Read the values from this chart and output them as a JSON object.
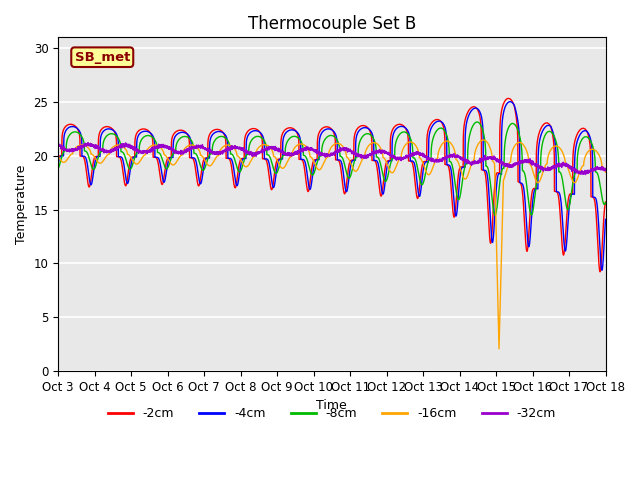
{
  "title": "Thermocouple Set B",
  "xlabel": "Time",
  "ylabel": "Temperature",
  "annotation": "SB_met",
  "ylim": [
    0,
    31
  ],
  "yticks": [
    0,
    5,
    10,
    15,
    20,
    25,
    30
  ],
  "xtick_labels": [
    "Oct 3",
    "Oct 4",
    "Oct 5",
    "Oct 6",
    "Oct 7",
    "Oct 8",
    "Oct 9",
    "Oct 10",
    "Oct 11",
    "Oct 12",
    "Oct 13",
    "Oct 14",
    "Oct 15",
    "Oct 16",
    "Oct 17",
    "Oct 18"
  ],
  "series": [
    {
      "label": "-2cm",
      "color": "#ff0000"
    },
    {
      "label": "-4cm",
      "color": "#0000ff"
    },
    {
      "label": "-8cm",
      "color": "#00bb00"
    },
    {
      "label": "-16cm",
      "color": "#ffa500"
    },
    {
      "label": "-32cm",
      "color": "#9900cc"
    }
  ],
  "bg_color": "#e8e8e8",
  "fig_color": "#ffffff",
  "grid_color": "#ffffff",
  "title_fontsize": 12,
  "label_fontsize": 9,
  "tick_fontsize": 8.5,
  "annotation_color": "#8B0000",
  "annotation_bg": "#ffff99",
  "annotation_border": "#8B0000"
}
